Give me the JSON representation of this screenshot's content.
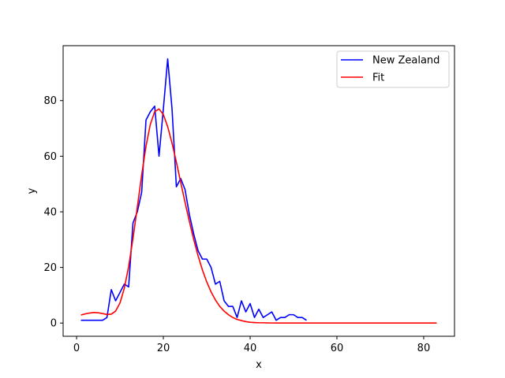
{
  "chart_data": {
    "type": "line",
    "xlabel": "x",
    "ylabel": "y",
    "xlim": [
      -3.1,
      87.1
    ],
    "ylim": [
      -4.75,
      99.75
    ],
    "xticks": [
      0,
      20,
      40,
      60,
      80
    ],
    "yticks": [
      0,
      20,
      40,
      60,
      80
    ],
    "grid": false,
    "legend_position": "top-right",
    "series": [
      {
        "name": "New Zealand",
        "color": "#0000ff",
        "x": [
          1,
          2,
          3,
          4,
          5,
          6,
          7,
          8,
          9,
          10,
          11,
          12,
          13,
          14,
          15,
          16,
          17,
          18,
          19,
          20,
          21,
          22,
          23,
          24,
          25,
          26,
          27,
          28,
          29,
          30,
          31,
          32,
          33,
          34,
          35,
          36,
          37,
          38,
          39,
          40,
          41,
          42,
          43,
          44,
          45,
          46,
          47,
          48,
          49,
          50,
          51,
          52,
          53
        ],
        "y": [
          1,
          1,
          1,
          1,
          1,
          1,
          2,
          12,
          8,
          11,
          14,
          13,
          36,
          40,
          47,
          73,
          76,
          78,
          60,
          77,
          95,
          77,
          49,
          52,
          48,
          39,
          32,
          26,
          23,
          23,
          20,
          14,
          15,
          8,
          6,
          6,
          2,
          8,
          4,
          7,
          2,
          5,
          2,
          3,
          4,
          1,
          2,
          2,
          3,
          3,
          2,
          2,
          1
        ]
      },
      {
        "name": "Fit",
        "color": "#ff0000",
        "x": [
          1,
          2,
          3,
          4,
          5,
          6,
          7,
          8,
          9,
          10,
          11,
          12,
          13,
          14,
          15,
          16,
          17,
          18,
          19,
          20,
          21,
          22,
          23,
          24,
          25,
          26,
          27,
          28,
          29,
          30,
          31,
          32,
          33,
          34,
          35,
          36,
          37,
          38,
          39,
          40,
          41,
          42,
          43,
          44,
          45,
          46,
          47,
          48,
          49,
          50,
          51,
          52,
          53,
          54,
          55,
          56,
          57,
          58,
          59,
          60,
          61,
          62,
          63,
          64,
          65,
          66,
          67,
          68,
          69,
          70,
          71,
          72,
          73,
          74,
          75,
          76,
          77,
          78,
          79,
          80,
          81,
          82,
          83
        ],
        "y": [
          2.9,
          3.3,
          3.6,
          3.8,
          3.7,
          3.4,
          3.1,
          3.2,
          4.3,
          7.2,
          12.5,
          20.3,
          30.4,
          41.7,
          53.2,
          63.6,
          71.5,
          76.0,
          77.0,
          75.0,
          70.6,
          64.7,
          57.9,
          50.6,
          43.4,
          36.5,
          30.0,
          24.2,
          19.1,
          14.8,
          11.2,
          8.3,
          6.0,
          4.3,
          3.0,
          2.0,
          1.3,
          0.9,
          0.5,
          0.3,
          0.2,
          0.1,
          0.1,
          0.05,
          0.03,
          0.02,
          0.01,
          0,
          0,
          0,
          0,
          0,
          0,
          0,
          0,
          0,
          0,
          0,
          0,
          0,
          0,
          0,
          0,
          0,
          0,
          0,
          0,
          0,
          0,
          0,
          0,
          0,
          0,
          0,
          0,
          0,
          0,
          0,
          0,
          0,
          0,
          0,
          0
        ]
      }
    ]
  }
}
